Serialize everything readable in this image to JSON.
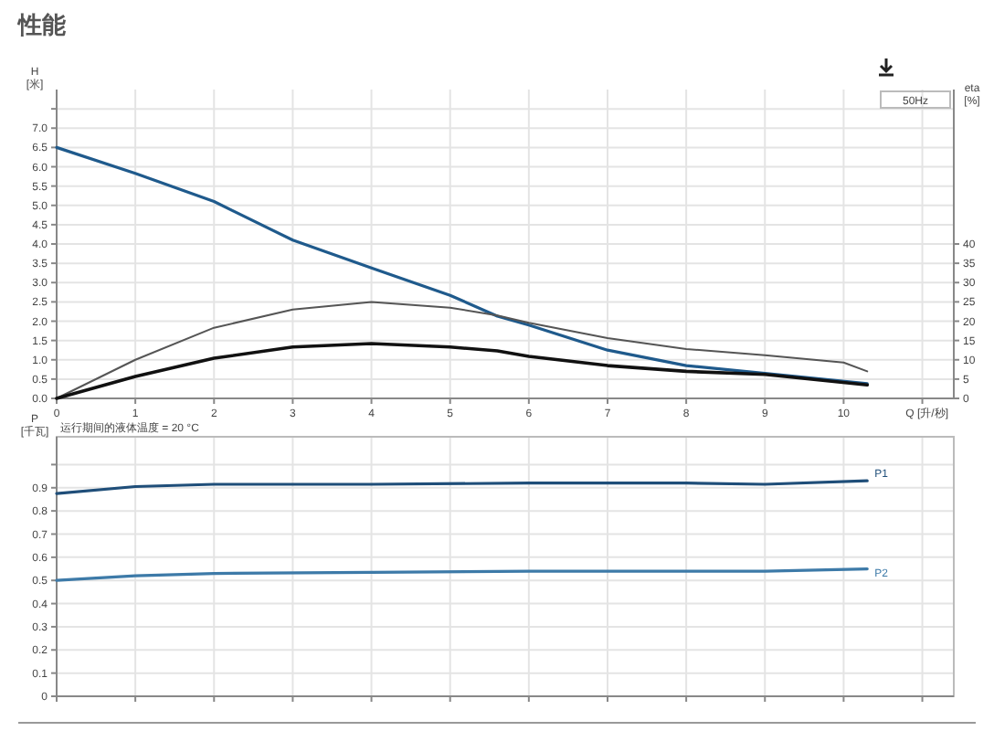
{
  "chart_data": [
    {
      "type": "line",
      "title": "性能",
      "xlabel": "Q [升/秒]",
      "ylabel": "H [米]",
      "y2label": "eta [%]",
      "annotations": [
        "50Hz",
        "运行期间的液体温度 = 20 °C"
      ],
      "grid": true,
      "line_style": "solid",
      "tick_labels": true,
      "xlim": [
        0,
        11.4
      ],
      "xticks": [
        0,
        1,
        2,
        3,
        4,
        5,
        6,
        7,
        8,
        9,
        10,
        {
          "value": 11,
          "label": null
        }
      ],
      "ylim": [
        0,
        8
      ],
      "yticks": [
        {
          "value": 0,
          "label": "0.0"
        },
        0.5,
        {
          "value": 1,
          "label": "1.0"
        },
        1.5,
        {
          "value": 2,
          "label": "2.0"
        },
        2.5,
        {
          "value": 3,
          "label": "3.0"
        },
        3.5,
        {
          "value": 4,
          "label": "4.0"
        },
        4.5,
        {
          "value": 5,
          "label": "5.0"
        },
        5.5,
        {
          "value": 6,
          "label": "6.0"
        },
        6.5,
        {
          "value": 7,
          "label": "7.0"
        },
        {
          "value": 7.5,
          "label": null
        }
      ],
      "y2lim": [
        0,
        80
      ],
      "y2ticks": [
        0,
        5,
        10,
        15,
        20,
        25,
        30,
        35,
        40
      ],
      "series": [
        {
          "color": "#1f5a8c",
          "x": [
            0,
            1,
            2,
            3,
            4,
            5,
            5.6,
            6,
            7,
            8,
            9,
            10.3
          ],
          "values": [
            6.5,
            5.83,
            5.1,
            4.1,
            3.38,
            2.67,
            2.13,
            1.9,
            1.25,
            0.85,
            0.65,
            0.38
          ]
        },
        {
          "color": "#555555",
          "axis": "y2",
          "x": [
            0,
            1,
            2,
            3,
            4,
            5,
            5.6,
            6,
            7,
            8,
            9,
            10,
            10.3
          ],
          "values": [
            0,
            10,
            18.3,
            23,
            25,
            23.5,
            21.5,
            19.6,
            15.6,
            12.8,
            11.2,
            9.3,
            7
          ]
        },
        {
          "color": "#111111",
          "axis": "y2",
          "x": [
            0,
            1,
            2,
            3,
            4,
            5,
            5.6,
            6,
            7,
            8,
            9,
            10.3
          ],
          "values": [
            0,
            5.7,
            10.4,
            13.3,
            14.2,
            13.3,
            12.3,
            10.9,
            8.5,
            7.0,
            6.2,
            3.5
          ]
        }
      ]
    },
    {
      "type": "line",
      "ylabel": "P [千瓦]",
      "grid": true,
      "line_style": "solid",
      "tick_labels": "y",
      "xlim": [
        0,
        11.4
      ],
      "xticks": [
        0,
        1,
        2,
        3,
        4,
        5,
        6,
        7,
        8,
        9,
        10,
        {
          "value": 11,
          "label": null
        }
      ],
      "ylim": [
        0,
        1.12
      ],
      "yticks": [
        0,
        0.1,
        0.2,
        0.3,
        0.4,
        0.5,
        0.6,
        0.7,
        0.8,
        0.9,
        {
          "value": 1.0,
          "label": null
        }
      ],
      "series": [
        {
          "name": "P1",
          "color": "#1f4e79",
          "x": [
            0,
            1,
            2,
            4,
            6,
            8,
            9,
            10.3
          ],
          "values": [
            0.875,
            0.905,
            0.915,
            0.915,
            0.92,
            0.92,
            0.915,
            0.93
          ]
        },
        {
          "name": "P2",
          "color": "#3d7aa8",
          "x": [
            0,
            1,
            2,
            4,
            6,
            8,
            9,
            10.3
          ],
          "values": [
            0.5,
            0.52,
            0.53,
            0.535,
            0.54,
            0.54,
            0.54,
            0.55
          ]
        }
      ]
    }
  ]
}
